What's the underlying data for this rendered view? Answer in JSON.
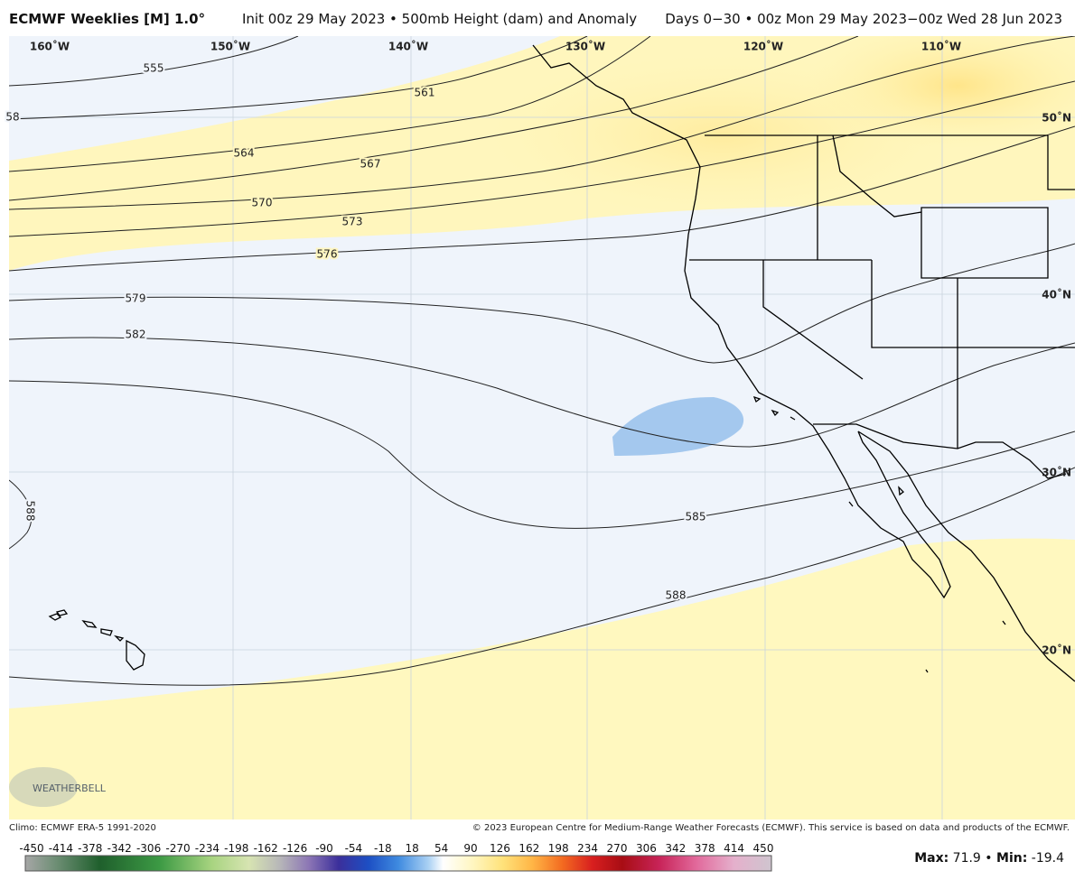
{
  "header": {
    "model": "ECMWF Weeklies [M] 1.0°",
    "init": "Init 00z 29 May 2023 • 500mb Height (dam) and Anomaly",
    "valid": "Days 0−30 • 00z Mon 29 May 2023−00z Wed 28 Jun 2023"
  },
  "map": {
    "longitude_labels": [
      "160˚W",
      "150˚W",
      "140˚W",
      "130˚W",
      "120˚W",
      "110˚W"
    ],
    "latitude_labels": [
      "50˚N",
      "40˚N",
      "30˚N",
      "20˚N"
    ],
    "contour_labels": [
      "58",
      "555",
      "561",
      "564",
      "567",
      "570",
      "573",
      "576",
      "579",
      "582",
      "585",
      "588",
      "588"
    ],
    "watermark": "WEATHERBELL"
  },
  "footer": {
    "climo": "Climo: ECMWF ERA-5 1991-2020",
    "copyright": "© 2023 European Centre for Medium-Range Weather Forecasts (ECMWF). This service is based on data and products of the ECMWF."
  },
  "colorbar": {
    "ticks": [
      -450,
      -414,
      -378,
      -342,
      -306,
      -270,
      -234,
      -198,
      -162,
      -126,
      -90,
      -54,
      -18,
      18,
      54,
      90,
      126,
      162,
      198,
      234,
      270,
      306,
      342,
      378,
      414,
      450
    ]
  },
  "stats": {
    "max_label": "Max:",
    "max": 71.9,
    "separator": "•",
    "min_label": "Min:",
    "min": -19.4
  }
}
